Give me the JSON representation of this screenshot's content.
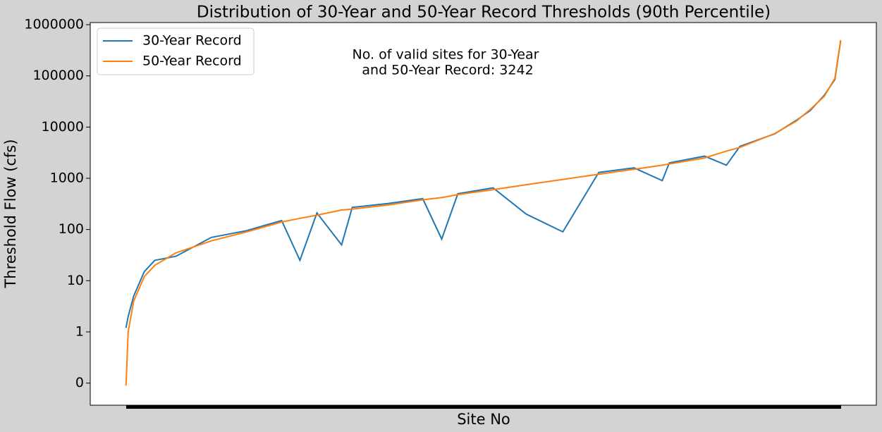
{
  "chart_data": {
    "type": "line",
    "title": "Distribution of 30-Year and 50-Year Record Thresholds (90th Percentile)",
    "xlabel": "Site No",
    "ylabel": "Threshold Flow (cfs)",
    "annotation": [
      "No. of valid sites for 30-Year",
      " and 50-Year Record: 3242"
    ],
    "x": [
      0,
      10,
      35,
      83,
      131,
      227,
      387,
      547,
      706,
      789,
      866,
      978,
      1026,
      1186,
      1346,
      1432,
      1505,
      1665,
      1815,
      1981,
      2144,
      2304,
      2432,
      2464,
      2624,
      2723,
      2784,
      2943,
      3039,
      3103,
      3167,
      3215,
      3241
    ],
    "series": [
      {
        "name": "30-Year Record",
        "color": "#1f77b4",
        "values": [
          1.2,
          2,
          5,
          15,
          25,
          30,
          70,
          95,
          150,
          25,
          210,
          50,
          270,
          320,
          400,
          65,
          500,
          650,
          200,
          90,
          1300,
          1600,
          900,
          2000,
          2700,
          1800,
          4200,
          7400,
          13500,
          21000,
          42000,
          85000,
          480000
        ]
      },
      {
        "name": "50-Year Record",
        "color": "#ff7f0e",
        "values": [
          0.09,
          1,
          4,
          12,
          20,
          35,
          60,
          90,
          140,
          165,
          190,
          240,
          250,
          300,
          380,
          420,
          480,
          600,
          750,
          950,
          1200,
          1500,
          1800,
          1900,
          2500,
          3400,
          4000,
          7500,
          13000,
          22000,
          40000,
          90000,
          500000
        ]
      }
    ],
    "log_y": true,
    "xlim": [
      -162,
      3403
    ],
    "ylim": [
      0.037,
      1100000
    ],
    "yticks": [
      {
        "value": 0.1,
        "label": "0"
      },
      1,
      10,
      100,
      1000,
      10000,
      100000,
      1000000
    ],
    "legend": "upper left"
  }
}
